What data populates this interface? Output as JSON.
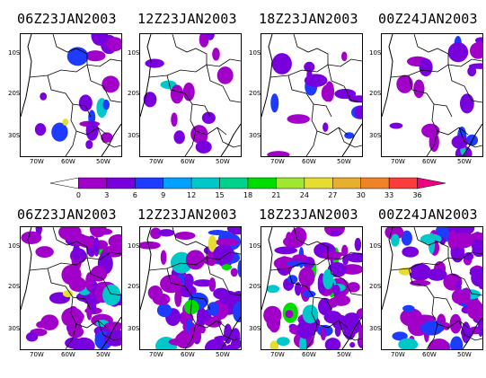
{
  "top_row": {
    "titles": [
      "06Z23JAN2003",
      "12Z23JAN2003",
      "18Z23JAN2003",
      "00Z24JAN2003"
    ]
  },
  "bottom_row": {
    "titles": [
      "06Z23JAN2003",
      "12Z23JAN2003",
      "18Z23JAN2003",
      "00Z24JAN2003"
    ]
  },
  "axes": {
    "lat_labels": [
      "10S",
      "20S",
      "30S"
    ],
    "lon_labels": [
      "70W",
      "60W",
      "50W"
    ]
  },
  "colorbar": {
    "levels": [
      "0",
      "3",
      "6",
      "9",
      "12",
      "15",
      "18",
      "21",
      "24",
      "27",
      "30",
      "33",
      "36"
    ],
    "colors": [
      "#ffffff",
      "#a000c8",
      "#7800dc",
      "#1e3cff",
      "#00a0ff",
      "#00c8c8",
      "#00d28c",
      "#00dc00",
      "#a0e632",
      "#e6dc32",
      "#e6af2d",
      "#f08228",
      "#fa3c3c",
      "#f00082"
    ]
  },
  "colors": {
    "light_purple": "#a000c8",
    "purple": "#7800dc",
    "blue": "#1e3cff",
    "cyan": "#00c8c8",
    "green": "#00dc00",
    "yellow": "#e6dc32"
  }
}
